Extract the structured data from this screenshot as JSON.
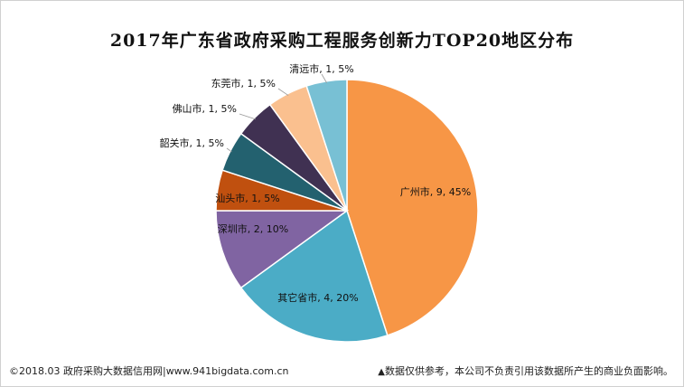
{
  "chart_data": {
    "type": "pie",
    "title": "2017年广东省政府采购工程服务创新力TOP20地区分布",
    "slices": [
      {
        "name": "广州市",
        "value": 9,
        "percent": "45%",
        "color": "#F79646"
      },
      {
        "name": "其它省市",
        "value": 4,
        "percent": "20%",
        "color": "#4BACC6"
      },
      {
        "name": "深圳市",
        "value": 2,
        "percent": "10%",
        "color": "#8064A2"
      },
      {
        "name": "汕头市",
        "value": 1,
        "percent": "5%",
        "color": "#C0500F"
      },
      {
        "name": "韶关市",
        "value": 1,
        "percent": "5%",
        "color": "#23616F"
      },
      {
        "name": "佛山市",
        "value": 1,
        "percent": "5%",
        "color": "#403152"
      },
      {
        "name": "东莞市",
        "value": 1,
        "percent": "5%",
        "color": "#FAC08F"
      },
      {
        "name": "清远市",
        "value": 1,
        "percent": "5%",
        "color": "#78C0D4"
      }
    ]
  },
  "footer": {
    "source": "©2018.03 政府采购大数据信用网|www.941bigdata.com.cn",
    "disclaimer_marker": "▲",
    "disclaimer": "数据仅供参考，本公司不负责引用该数据所产生的商业负面影响。"
  }
}
